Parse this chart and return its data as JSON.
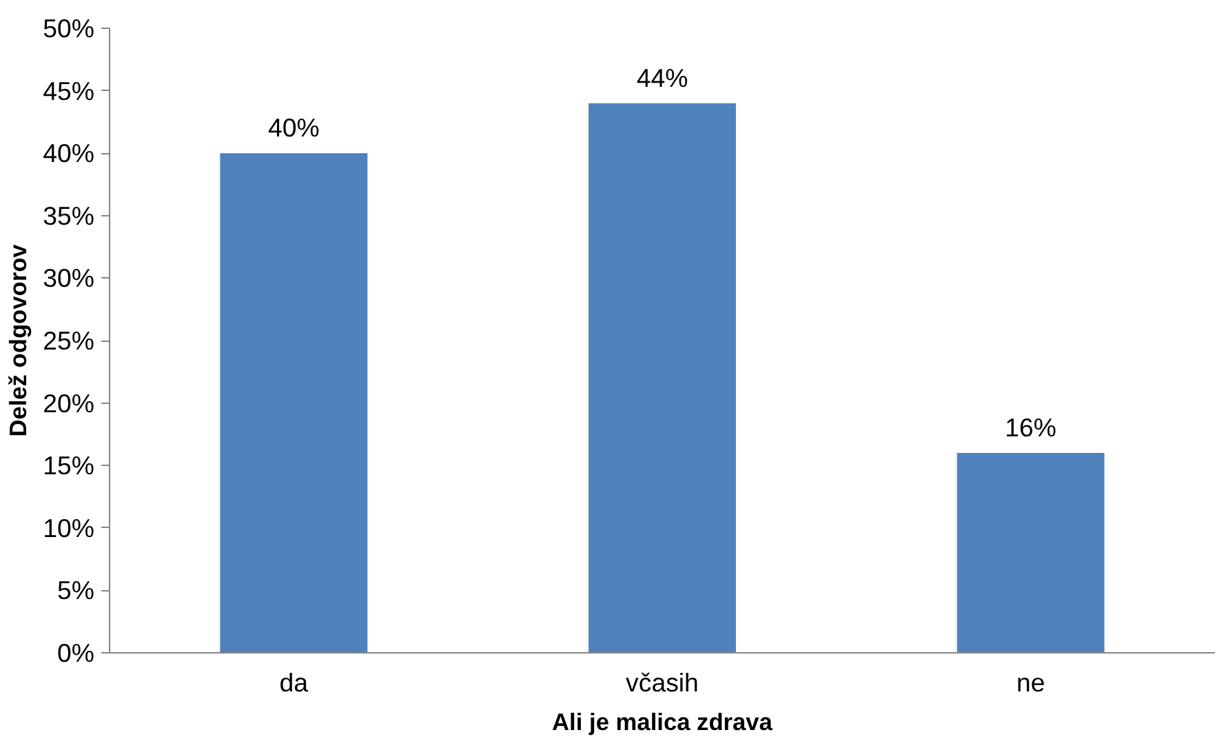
{
  "chart_data": {
    "type": "bar",
    "xlabel": "Ali je malica zdrava",
    "ylabel": "Delež odgovorov",
    "categories": [
      "da",
      "včasih",
      "ne"
    ],
    "values": [
      40,
      44,
      16
    ],
    "value_labels": [
      "40%",
      "44%",
      "16%"
    ],
    "color": "#4f81bd",
    "ylim": [
      0,
      50
    ],
    "yticks": [
      {
        "value": 0,
        "label": "0%"
      },
      {
        "value": 5,
        "label": "5%"
      },
      {
        "value": 10,
        "label": "10%"
      },
      {
        "value": 15,
        "label": "15%"
      },
      {
        "value": 20,
        "label": "20%"
      },
      {
        "value": 25,
        "label": "25%"
      },
      {
        "value": 30,
        "label": "30%"
      },
      {
        "value": 35,
        "label": "35%"
      },
      {
        "value": 40,
        "label": "40%"
      },
      {
        "value": 45,
        "label": "45%"
      },
      {
        "value": 50,
        "label": "50%"
      }
    ],
    "grid": false
  }
}
